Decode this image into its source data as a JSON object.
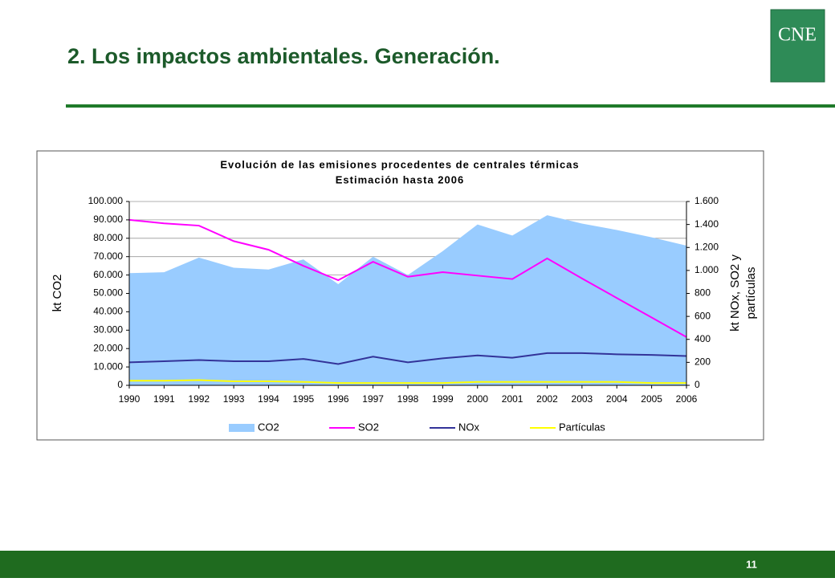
{
  "slide": {
    "title": "2. Los impactos ambientales. Generación.",
    "logo": "CNE",
    "page_number": "11"
  },
  "chart_data": {
    "type": "line",
    "title": [
      "Evolución de las emisiones procedentes de centrales térmicas",
      "Estimación hasta 2006"
    ],
    "ylabel": "kt CO2",
    "y2label": [
      "kt NOx, SO2 y",
      "partículas"
    ],
    "categories": [
      "1990",
      "1991",
      "1992",
      "1993",
      "1994",
      "1995",
      "1996",
      "1997",
      "1998",
      "1999",
      "2000",
      "2001",
      "2002",
      "2003",
      "2004",
      "2005",
      "2006"
    ],
    "series": [
      {
        "name": "CO2",
        "style": "area",
        "color": "#99ccff",
        "values": [
          61000,
          61500,
          69500,
          64000,
          63000,
          68500,
          55000,
          70000,
          60000,
          73000,
          87500,
          81500,
          92500,
          88000,
          84500,
          80500,
          76000
        ]
      },
      {
        "name": "SO2",
        "style": "line",
        "axis": "y2",
        "color": "#ff00ff",
        "values": [
          1440,
          1410,
          1390,
          1255,
          1180,
          1040,
          915,
          1075,
          945,
          985,
          955,
          925,
          1105,
          930,
          760,
          590,
          420
        ]
      },
      {
        "name": "NOx",
        "style": "line",
        "axis": "y2",
        "color": "#333399",
        "values": [
          200,
          210,
          220,
          210,
          210,
          230,
          185,
          250,
          200,
          235,
          260,
          240,
          280,
          280,
          270,
          265,
          255
        ]
      },
      {
        "name": "Partículas",
        "style": "line",
        "axis": "y2",
        "color": "#ffff00",
        "values": [
          40,
          40,
          45,
          35,
          35,
          30,
          20,
          20,
          20,
          20,
          30,
          30,
          30,
          30,
          30,
          20,
          20
        ]
      }
    ],
    "ylim": [
      0,
      100000
    ],
    "yticks": [
      0,
      {
        "value": 10000,
        "label": "10.000"
      },
      {
        "value": 20000,
        "label": "20.000"
      },
      {
        "value": 30000,
        "label": "30.000"
      },
      {
        "value": 40000,
        "label": "40.000"
      },
      {
        "value": 50000,
        "label": "50.000"
      },
      {
        "value": 60000,
        "label": "60.000"
      },
      {
        "value": 70000,
        "label": "70.000"
      },
      {
        "value": 80000,
        "label": "80.000"
      },
      {
        "value": 90000,
        "label": "90.000"
      },
      {
        "value": 100000,
        "label": "100.000"
      }
    ],
    "y2lim": [
      0,
      1600
    ],
    "y2ticks": [
      0,
      200,
      400,
      600,
      800,
      {
        "value": 1000,
        "label": "1.000"
      },
      {
        "value": 1200,
        "label": "1.200"
      },
      {
        "value": 1400,
        "label": "1.400"
      },
      {
        "value": 1600,
        "label": "1.600"
      }
    ],
    "grid": true,
    "legend": "bottom"
  }
}
